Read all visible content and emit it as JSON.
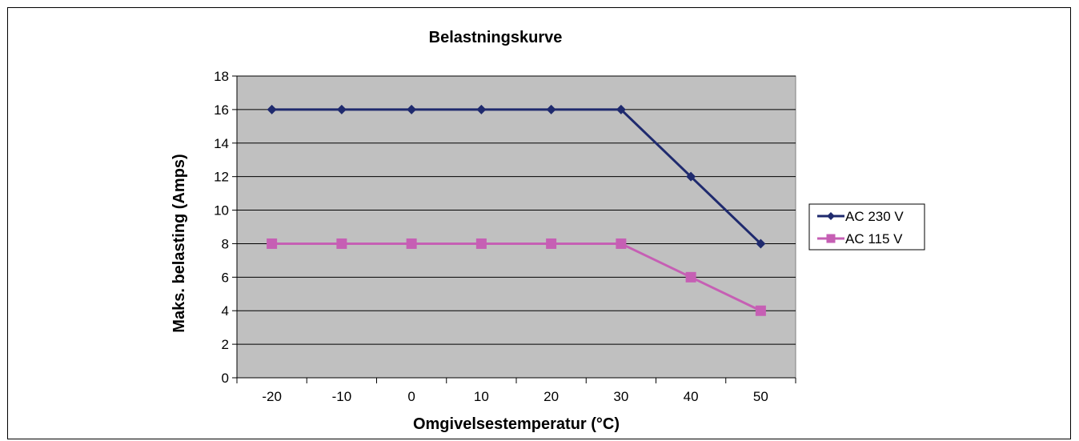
{
  "chart_data": {
    "type": "line",
    "title": "Belastningskurve",
    "xlabel": "Omgivelsestemperatur (°C)",
    "ylabel": "Maks. belasting (Amps)",
    "categories": [
      "-20",
      "-10",
      "0",
      "10",
      "20",
      "30",
      "40",
      "50"
    ],
    "ylim": [
      0,
      18
    ],
    "yticks": [
      "0",
      "2",
      "4",
      "6",
      "8",
      "10",
      "12",
      "14",
      "16",
      "18"
    ],
    "grid": true,
    "legend_position": "right",
    "plot_background": "#c0c0c0",
    "series": [
      {
        "name": "AC 230 V",
        "values": [
          16,
          16,
          16,
          16,
          16,
          16,
          12,
          8
        ],
        "color": "#1f2a6e",
        "marker": "diamond"
      },
      {
        "name": "AC 115 V",
        "values": [
          8,
          8,
          8,
          8,
          8,
          8,
          6,
          4
        ],
        "color": "#c65fb4",
        "marker": "square"
      }
    ]
  }
}
